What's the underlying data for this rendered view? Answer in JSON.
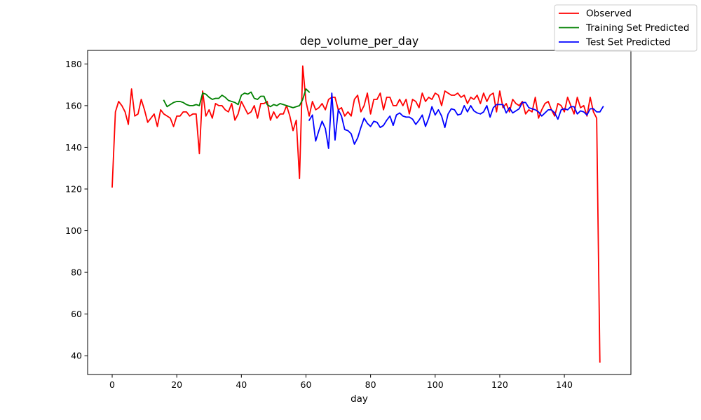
{
  "chart_data": {
    "type": "line",
    "title": "dep_volume_per_day",
    "xlabel": "day",
    "ylabel": "",
    "xlim": [
      -7.6,
      160.6
    ],
    "ylim": [
      31,
      186.5
    ],
    "xticks": [
      0,
      20,
      40,
      60,
      80,
      100,
      120,
      140
    ],
    "yticks": [
      40,
      60,
      80,
      100,
      120,
      140,
      160,
      180
    ],
    "grid": false,
    "legend_position": "top-right",
    "series": [
      {
        "name": "Observed",
        "color": "#ff0000",
        "x_start": 0,
        "values": [
          121,
          157,
          162,
          160,
          157,
          151,
          168,
          155,
          156,
          163,
          158,
          152,
          154,
          156,
          150,
          158,
          156,
          155,
          154,
          150,
          155,
          155,
          157,
          157,
          155,
          156,
          156,
          137,
          167,
          155,
          158,
          154,
          161,
          160,
          160,
          158,
          157,
          161,
          153,
          156,
          162,
          159,
          156,
          157,
          160,
          154,
          161,
          161,
          162,
          153,
          157,
          154,
          156,
          156,
          160,
          155,
          148,
          153,
          125,
          179,
          162,
          155,
          162,
          158,
          159,
          161,
          158,
          163,
          164,
          164,
          158,
          159,
          155,
          157,
          155,
          163,
          165,
          157,
          160,
          166,
          156,
          163,
          163,
          166,
          158,
          164,
          164,
          160,
          160,
          163,
          160,
          163,
          156,
          163,
          162,
          159,
          166,
          162,
          164,
          163,
          166,
          165,
          160,
          167,
          166,
          165,
          165,
          166,
          164,
          165,
          161,
          164,
          163,
          165,
          161,
          166,
          162,
          165,
          166,
          157,
          167,
          159,
          161,
          157,
          163,
          161,
          160,
          162,
          156,
          158,
          157,
          164,
          154,
          158,
          161,
          162,
          158,
          155,
          161,
          160,
          157,
          164,
          160,
          156,
          164,
          159,
          160,
          155,
          164,
          157,
          154,
          37
        ]
      },
      {
        "name": "Training Set Predicted",
        "color": "#008000",
        "x_start": 16,
        "values": [
          162.5,
          159.5,
          160.5,
          161.5,
          162,
          162,
          161.5,
          160.5,
          160,
          160,
          160.5,
          160,
          166,
          165.5,
          164,
          163,
          163.5,
          163.5,
          165,
          164,
          162.5,
          162,
          161.5,
          160.5,
          165,
          166,
          165.5,
          166.5,
          163.5,
          163,
          164.5,
          164.5,
          160.5,
          159.5,
          160.5,
          160,
          161,
          160.5,
          160,
          159.5,
          159,
          159.5,
          160,
          163,
          168,
          166.5
        ]
      },
      {
        "name": "Test Set Predicted",
        "color": "#0000ff",
        "x_start": 61,
        "values": [
          153,
          155.5,
          143,
          148,
          152.5,
          149,
          139.5,
          166,
          143.5,
          158,
          155,
          148.5,
          148,
          146.5,
          141.5,
          144.5,
          149.5,
          154,
          151.5,
          150,
          152.5,
          152,
          149.5,
          150.5,
          153,
          155,
          150.5,
          155.5,
          156.5,
          155,
          154.5,
          154.5,
          153.5,
          151,
          153,
          155.5,
          150,
          154,
          159.5,
          155.5,
          158,
          155,
          149.5,
          156,
          158.5,
          158,
          155.5,
          156,
          160,
          157,
          160,
          157.5,
          156.5,
          156,
          157,
          160,
          154.5,
          159,
          160.5,
          160.5,
          160.5,
          156.5,
          159,
          156.5,
          157.5,
          158.5,
          161.5,
          161.5,
          159,
          158.5,
          158,
          157,
          155,
          156.5,
          158,
          158,
          156.5,
          153.5,
          158,
          158.5,
          158,
          159.5,
          159.5,
          156,
          157.5,
          157,
          155.5,
          158.5,
          158.5,
          157,
          157,
          159.5
        ]
      }
    ]
  }
}
